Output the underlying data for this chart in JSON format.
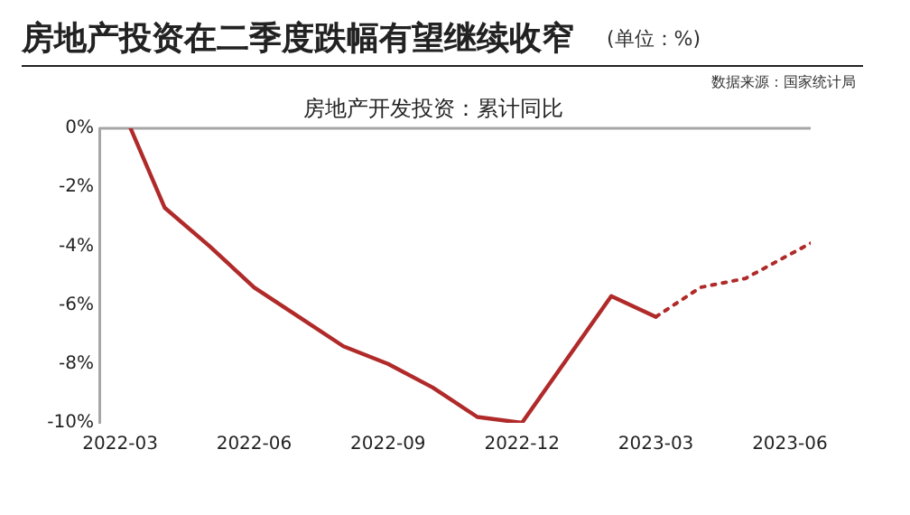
{
  "chart_data": {
    "type": "line",
    "title": "房地产投资在二季度跌幅有望继续收窄",
    "subtitle": "房地产开发投资：累计同比",
    "annotations": [
      "(单位：%)",
      "数据来源：国家统计局"
    ],
    "series": [
      {
        "color": "#b02a2a",
        "line_style": "solid",
        "x": [
          "2022-03-08",
          "2022-04",
          "2022-05",
          "2022-06",
          "2022-07",
          "2022-08",
          "2022-09",
          "2022-10",
          "2022-11",
          "2022-12",
          "2023-02",
          "2023-03"
        ],
        "values": [
          0,
          -2.7,
          -4.0,
          -5.4,
          -6.4,
          -7.4,
          -8.0,
          -8.8,
          -9.8,
          -10.0,
          -5.7,
          -6.4
        ]
      },
      {
        "color": "#b02a2a",
        "line_style": "dotted",
        "x": [
          "2023-03",
          "2023-04",
          "2023-05",
          "2023-06-15"
        ],
        "values": [
          -6.4,
          -5.4,
          -5.1,
          -3.9
        ]
      }
    ],
    "xlim": [
      "2022-02-17",
      "2023-06-15"
    ],
    "xticks": [
      "2022-03",
      "2022-06",
      "2022-09",
      "2022-12",
      "2023-03",
      "2023-06"
    ],
    "ylim": [
      -10,
      0
    ],
    "yticks": [
      {
        "value": -10,
        "label": "-10%"
      },
      {
        "value": -8,
        "label": "-8%"
      },
      {
        "value": -6,
        "label": "-6%"
      },
      {
        "value": -4,
        "label": "-4%"
      },
      {
        "value": -2,
        "label": "-2%"
      },
      {
        "value": 0,
        "label": "0%"
      }
    ],
    "ref_lines": [
      {
        "axis": "y",
        "value": 0,
        "color": "#a6a6a6"
      }
    ],
    "grid": false,
    "legend": false,
    "marker": "none"
  }
}
